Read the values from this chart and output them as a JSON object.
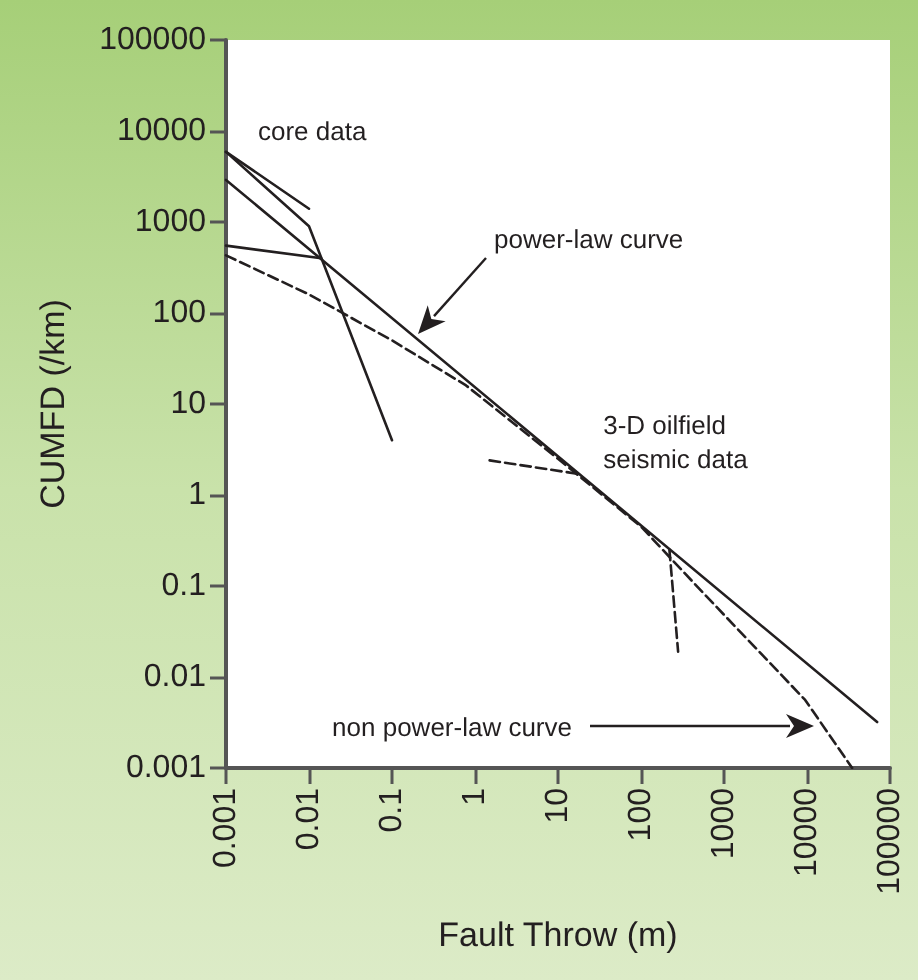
{
  "chart_data": {
    "type": "line",
    "xlabel": "Fault Throw (m)",
    "ylabel": "CUMFD (/km)",
    "log": "xy",
    "marker": "none",
    "xlim": [
      0.001,
      100000
    ],
    "xticks": [
      0.001,
      0.01,
      0.1,
      1,
      10,
      100,
      1000,
      10000,
      100000
    ],
    "ylim": [
      0.001,
      100000
    ],
    "yticks": [
      0.001,
      0.01,
      0.1,
      1,
      10,
      100,
      1000,
      10000,
      100000
    ],
    "series": [
      {
        "color": "#231f20",
        "line_style": "solid",
        "x": [
          0.001,
          0.01
        ],
        "values": [
          5900,
          1400
        ]
      },
      {
        "color": "#231f20",
        "line_style": "solid",
        "x": [
          0.001,
          0.01,
          0.1
        ],
        "values": [
          5900,
          900,
          4
        ]
      },
      {
        "color": "#231f20",
        "line_style": "solid",
        "x": [
          0.001,
          0.014
        ],
        "values": [
          550,
          400
        ]
      },
      {
        "color": "#231f20",
        "line_style": "solid",
        "x": [
          0.001,
          70000
        ],
        "values": [
          2900,
          0.0032
        ]
      },
      {
        "color": "#231f20",
        "line_style": "dashed",
        "x": [
          0.001,
          0.01,
          0.1,
          0.78,
          10,
          100,
          590,
          9500,
          35000
        ],
        "values": [
          430,
          160,
          50,
          16,
          2.5,
          0.45,
          0.08,
          0.0056,
          0.001
        ]
      },
      {
        "color": "#231f20",
        "line_style": "dashed",
        "x": [
          1.5,
          18
        ],
        "values": [
          2.4,
          1.7
        ]
      },
      {
        "color": "#231f20",
        "line_style": "dashed",
        "x": [
          220,
          280
        ],
        "values": [
          0.25,
          0.019
        ]
      }
    ],
    "annotations": [
      {
        "text": "core data",
        "x": 0.001,
        "y": 5900
      },
      "power-law curve",
      {
        "text": "3-D oilfield\nseismic data",
        "x": 18,
        "y": 1.7
      },
      "non power-law curve"
    ]
  }
}
